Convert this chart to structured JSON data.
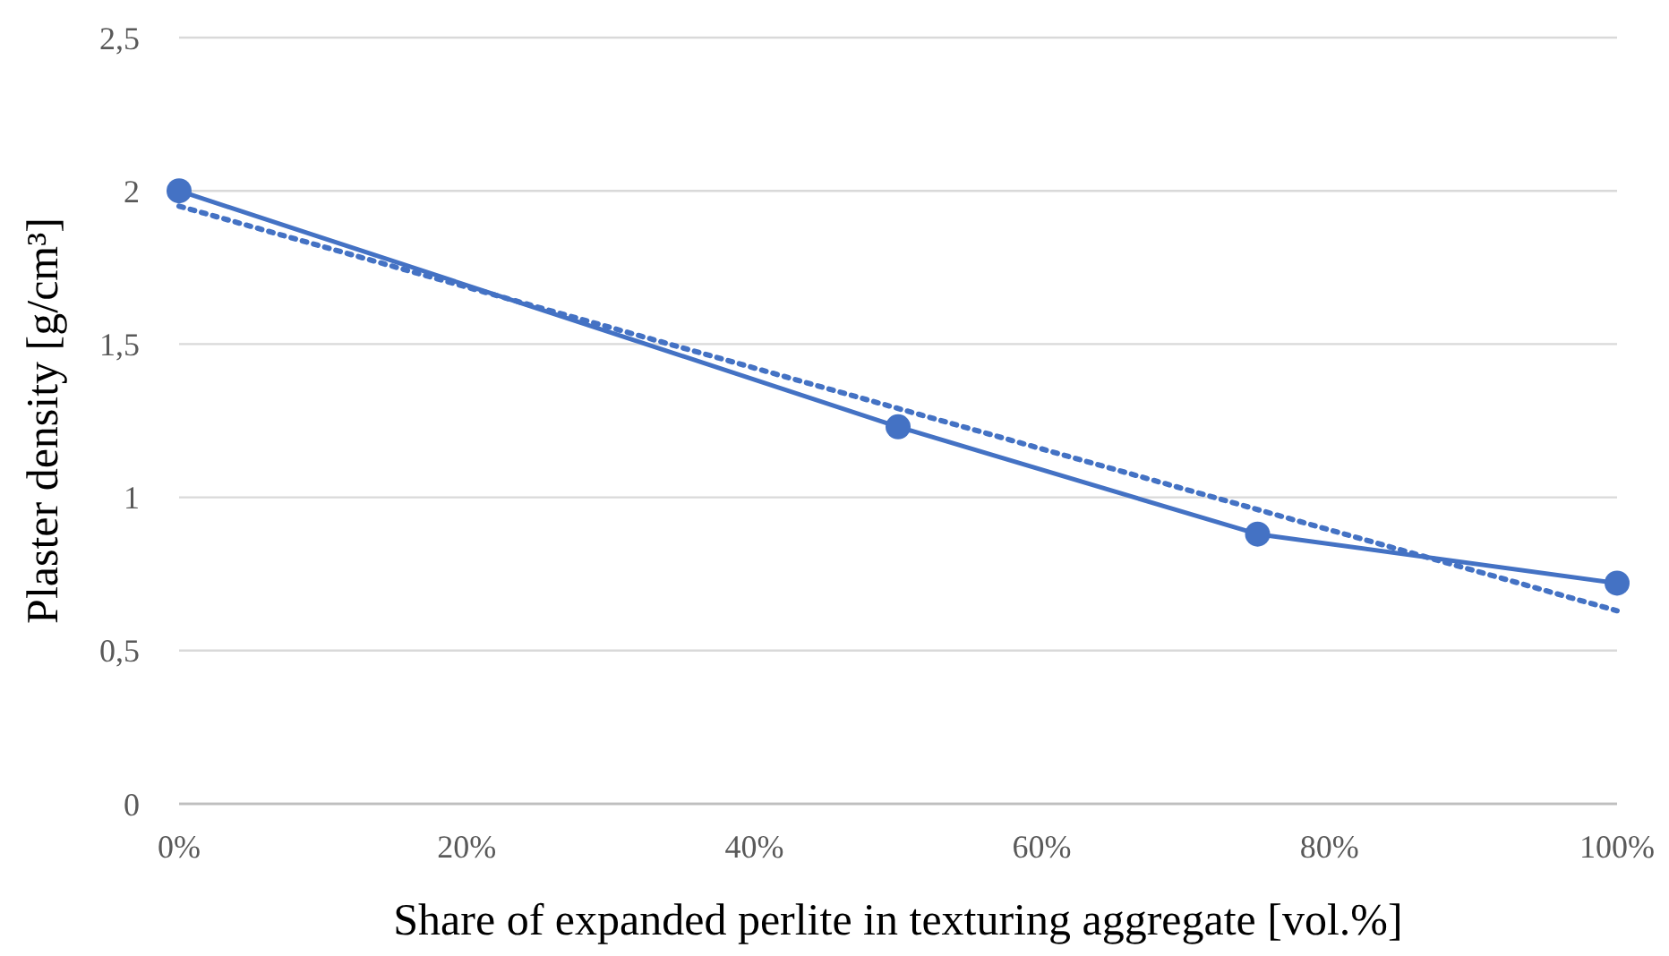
{
  "chart_data": {
    "type": "line",
    "xlabel": "Share of expanded perlite in texturing aggregate [vol.%]",
    "ylabel": "Plaster density [g/cm³]",
    "xlim": [
      0,
      100
    ],
    "xticks": [
      {
        "value": 0,
        "label": "0%"
      },
      {
        "value": 20,
        "label": "20%"
      },
      {
        "value": 40,
        "label": "40%"
      },
      {
        "value": 60,
        "label": "60%"
      },
      {
        "value": 80,
        "label": "80%"
      },
      {
        "value": 100,
        "label": "100%"
      }
    ],
    "ylim": [
      0,
      2.5
    ],
    "yticks": [
      0,
      {
        "value": 0.5,
        "label": "0,5"
      },
      1,
      {
        "value": 1.5,
        "label": "1,5"
      },
      2,
      {
        "value": 2.5,
        "label": "2,5"
      }
    ],
    "grid": "y",
    "series": [
      {
        "color": "#4472c4",
        "x": [
          0,
          50,
          75,
          100
        ],
        "values": [
          2,
          1.23,
          0.88,
          0.72
        ],
        "marker": "circle",
        "line_style": "solid"
      },
      {
        "color": "#4472c4",
        "x": [
          0,
          100
        ],
        "values": [
          1.95,
          0.63
        ],
        "marker": "none",
        "line_style": "dotted"
      }
    ]
  }
}
